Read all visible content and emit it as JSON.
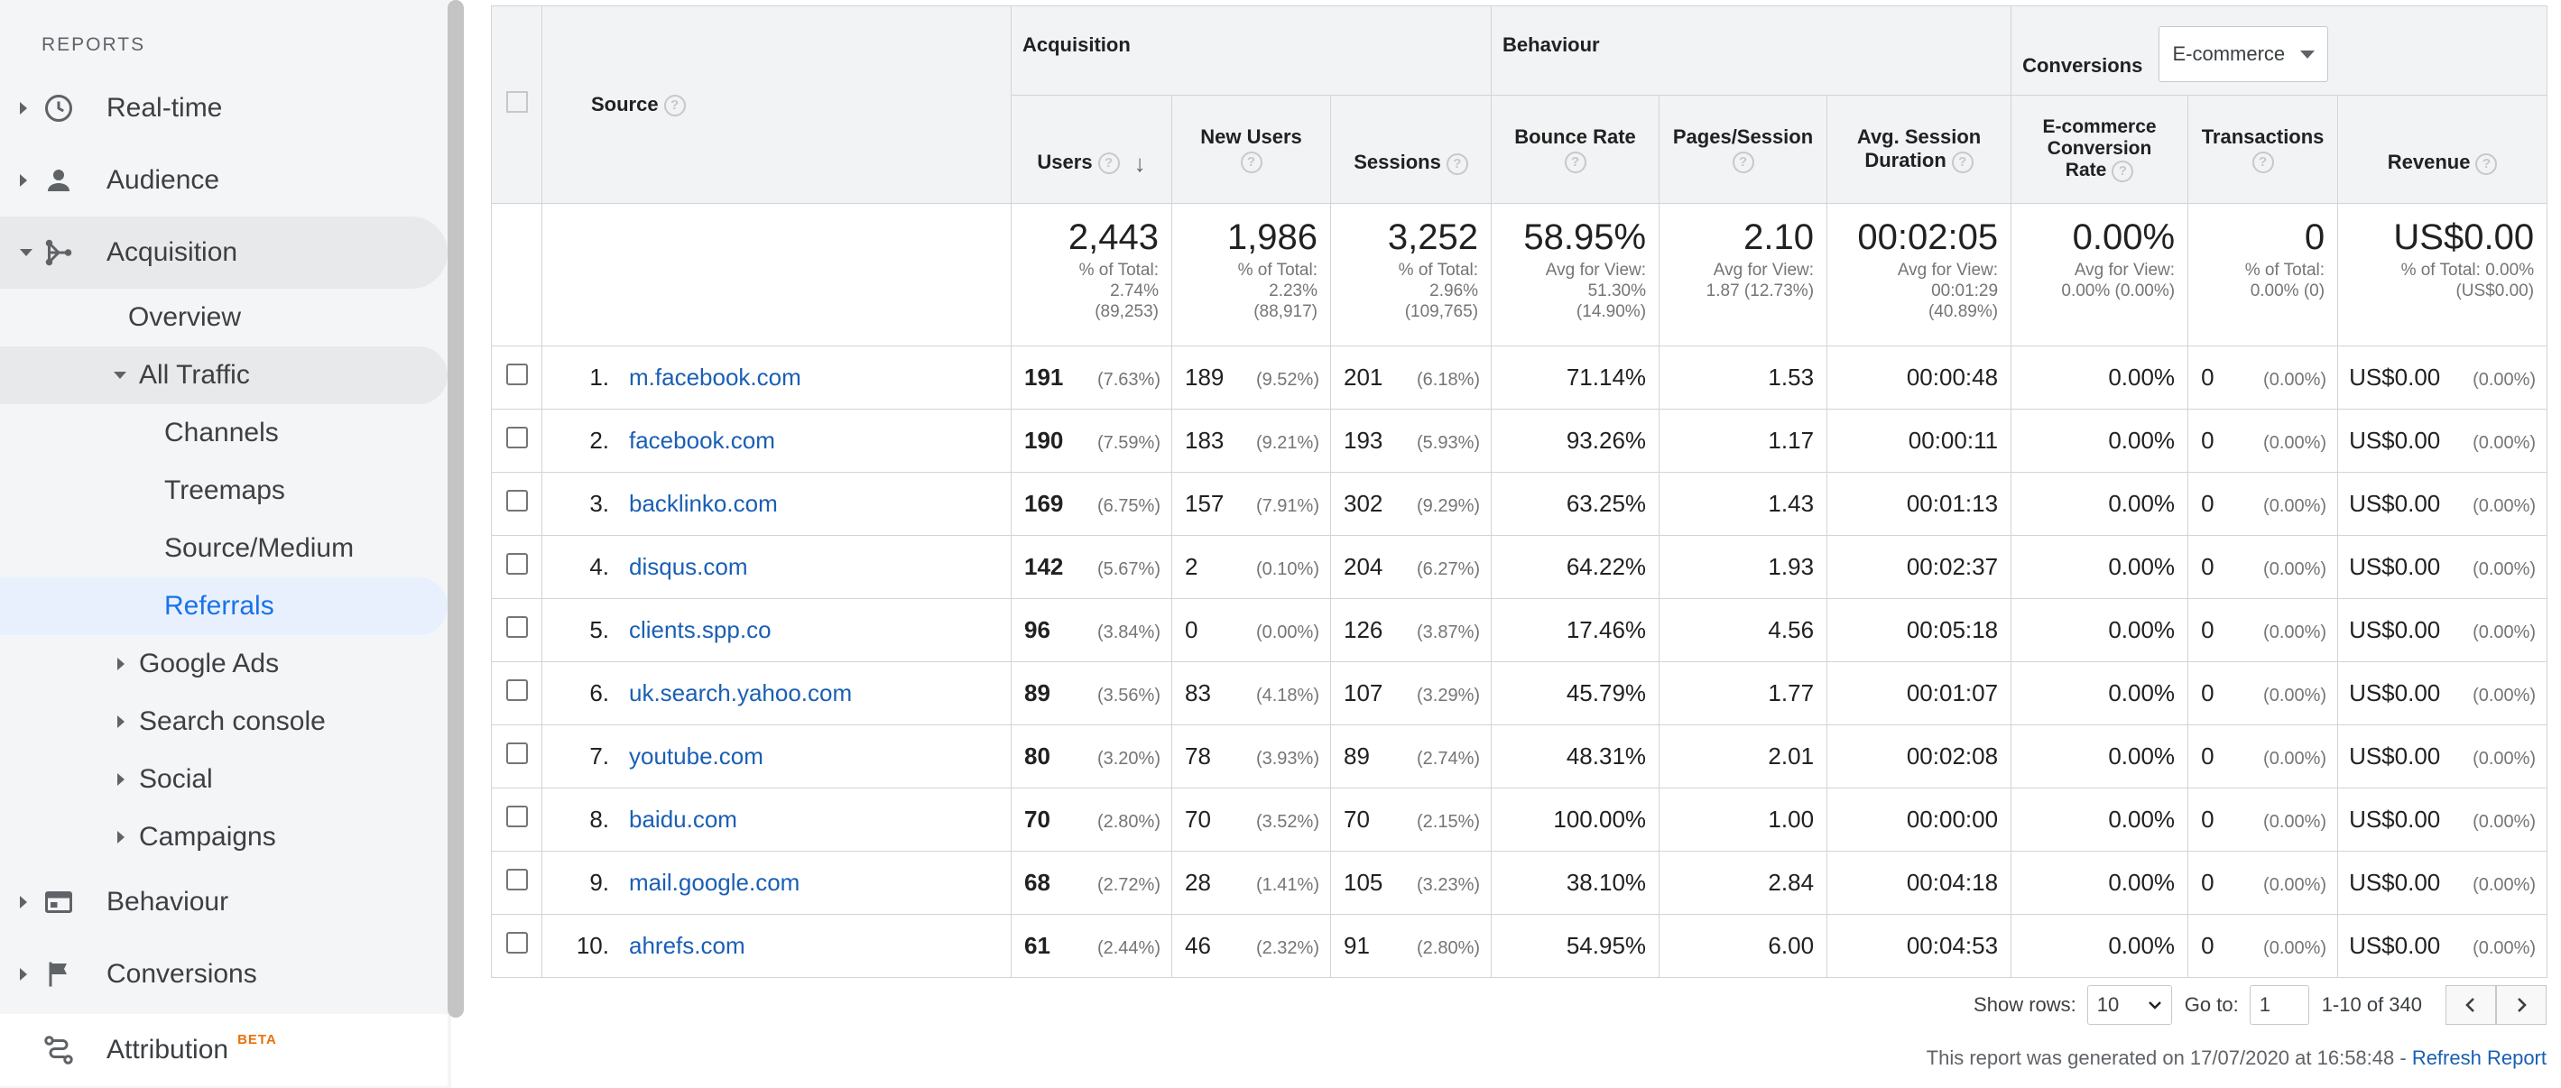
{
  "sidebar": {
    "heading": "REPORTS",
    "items": [
      {
        "label": "Real-time"
      },
      {
        "label": "Audience"
      },
      {
        "label": "Acquisition"
      },
      {
        "label": "Overview"
      },
      {
        "label": "All Traffic"
      },
      {
        "label": "Channels"
      },
      {
        "label": "Treemaps"
      },
      {
        "label": "Source/Medium"
      },
      {
        "label": "Referrals"
      },
      {
        "label": "Google Ads"
      },
      {
        "label": "Search console"
      },
      {
        "label": "Social"
      },
      {
        "label": "Campaigns"
      },
      {
        "label": "Behaviour"
      },
      {
        "label": "Conversions"
      },
      {
        "label": "Attribution",
        "badge": "BETA"
      }
    ]
  },
  "table": {
    "groups": {
      "acquisition": "Acquisition",
      "behaviour": "Behaviour",
      "conversions": "Conversions",
      "conversions_select": "E-commerce"
    },
    "columns": {
      "source": "Source",
      "users": "Users",
      "new_users": "New Users",
      "sessions": "Sessions",
      "bounce_rate": "Bounce Rate",
      "pages_session": "Pages/Session",
      "avg_session_1": "Avg. Session",
      "avg_session_2": "Duration",
      "ecr_1": "E-commerce",
      "ecr_2": "Conversion",
      "ecr_3": "Rate",
      "transactions": "Transactions",
      "revenue": "Revenue"
    },
    "totals": {
      "users": {
        "value": "2,443",
        "l1": "% of Total:",
        "l2": "2.74%",
        "l3": "(89,253)"
      },
      "new_users": {
        "value": "1,986",
        "l1": "% of Total:",
        "l2": "2.23%",
        "l3": "(88,917)"
      },
      "sessions": {
        "value": "3,252",
        "l1": "% of Total:",
        "l2": "2.96%",
        "l3": "(109,765)"
      },
      "bounce_rate": {
        "value": "58.95%",
        "l1": "Avg for View:",
        "l2": "51.30%",
        "l3": "(14.90%)"
      },
      "pages_session": {
        "value": "2.10",
        "l1": "Avg for View:",
        "l2": "1.87 (12.73%)"
      },
      "avg_duration": {
        "value": "00:02:05",
        "l1": "Avg for View:",
        "l2": "00:01:29",
        "l3": "(40.89%)"
      },
      "ecr": {
        "value": "0.00%",
        "l1": "Avg for View:",
        "l2": "0.00% (0.00%)"
      },
      "transactions": {
        "value": "0",
        "l1": "% of Total:",
        "l2": "0.00% (0)"
      },
      "revenue": {
        "value": "US$0.00",
        "l1": "% of Total: 0.00%",
        "l2": "(US$0.00)"
      }
    },
    "rows": [
      {
        "idx": "1.",
        "source": "m.facebook.com",
        "users": "191",
        "users_pct": "(7.63%)",
        "new_users": "189",
        "new_users_pct": "(9.52%)",
        "sessions": "201",
        "sessions_pct": "(6.18%)",
        "bounce": "71.14%",
        "pages": "1.53",
        "duration": "00:00:48",
        "ecr": "0.00%",
        "trans": "0",
        "trans_pct": "(0.00%)",
        "revenue": "US$0.00",
        "revenue_pct": "(0.00%)"
      },
      {
        "idx": "2.",
        "source": "facebook.com",
        "users": "190",
        "users_pct": "(7.59%)",
        "new_users": "183",
        "new_users_pct": "(9.21%)",
        "sessions": "193",
        "sessions_pct": "(5.93%)",
        "bounce": "93.26%",
        "pages": "1.17",
        "duration": "00:00:11",
        "ecr": "0.00%",
        "trans": "0",
        "trans_pct": "(0.00%)",
        "revenue": "US$0.00",
        "revenue_pct": "(0.00%)"
      },
      {
        "idx": "3.",
        "source": "backlinko.com",
        "users": "169",
        "users_pct": "(6.75%)",
        "new_users": "157",
        "new_users_pct": "(7.91%)",
        "sessions": "302",
        "sessions_pct": "(9.29%)",
        "bounce": "63.25%",
        "pages": "1.43",
        "duration": "00:01:13",
        "ecr": "0.00%",
        "trans": "0",
        "trans_pct": "(0.00%)",
        "revenue": "US$0.00",
        "revenue_pct": "(0.00%)"
      },
      {
        "idx": "4.",
        "source": "disqus.com",
        "users": "142",
        "users_pct": "(5.67%)",
        "new_users": "2",
        "new_users_pct": "(0.10%)",
        "sessions": "204",
        "sessions_pct": "(6.27%)",
        "bounce": "64.22%",
        "pages": "1.93",
        "duration": "00:02:37",
        "ecr": "0.00%",
        "trans": "0",
        "trans_pct": "(0.00%)",
        "revenue": "US$0.00",
        "revenue_pct": "(0.00%)"
      },
      {
        "idx": "5.",
        "source": "clients.spp.co",
        "users": "96",
        "users_pct": "(3.84%)",
        "new_users": "0",
        "new_users_pct": "(0.00%)",
        "sessions": "126",
        "sessions_pct": "(3.87%)",
        "bounce": "17.46%",
        "pages": "4.56",
        "duration": "00:05:18",
        "ecr": "0.00%",
        "trans": "0",
        "trans_pct": "(0.00%)",
        "revenue": "US$0.00",
        "revenue_pct": "(0.00%)"
      },
      {
        "idx": "6.",
        "source": "uk.search.yahoo.com",
        "users": "89",
        "users_pct": "(3.56%)",
        "new_users": "83",
        "new_users_pct": "(4.18%)",
        "sessions": "107",
        "sessions_pct": "(3.29%)",
        "bounce": "45.79%",
        "pages": "1.77",
        "duration": "00:01:07",
        "ecr": "0.00%",
        "trans": "0",
        "trans_pct": "(0.00%)",
        "revenue": "US$0.00",
        "revenue_pct": "(0.00%)"
      },
      {
        "idx": "7.",
        "source": "youtube.com",
        "users": "80",
        "users_pct": "(3.20%)",
        "new_users": "78",
        "new_users_pct": "(3.93%)",
        "sessions": "89",
        "sessions_pct": "(2.74%)",
        "bounce": "48.31%",
        "pages": "2.01",
        "duration": "00:02:08",
        "ecr": "0.00%",
        "trans": "0",
        "trans_pct": "(0.00%)",
        "revenue": "US$0.00",
        "revenue_pct": "(0.00%)"
      },
      {
        "idx": "8.",
        "source": "baidu.com",
        "users": "70",
        "users_pct": "(2.80%)",
        "new_users": "70",
        "new_users_pct": "(3.52%)",
        "sessions": "70",
        "sessions_pct": "(2.15%)",
        "bounce": "100.00%",
        "pages": "1.00",
        "duration": "00:00:00",
        "ecr": "0.00%",
        "trans": "0",
        "trans_pct": "(0.00%)",
        "revenue": "US$0.00",
        "revenue_pct": "(0.00%)"
      },
      {
        "idx": "9.",
        "source": "mail.google.com",
        "users": "68",
        "users_pct": "(2.72%)",
        "new_users": "28",
        "new_users_pct": "(1.41%)",
        "sessions": "105",
        "sessions_pct": "(3.23%)",
        "bounce": "38.10%",
        "pages": "2.84",
        "duration": "00:04:18",
        "ecr": "0.00%",
        "trans": "0",
        "trans_pct": "(0.00%)",
        "revenue": "US$0.00",
        "revenue_pct": "(0.00%)"
      },
      {
        "idx": "10.",
        "source": "ahrefs.com",
        "users": "61",
        "users_pct": "(2.44%)",
        "new_users": "46",
        "new_users_pct": "(2.32%)",
        "sessions": "91",
        "sessions_pct": "(2.80%)",
        "bounce": "54.95%",
        "pages": "6.00",
        "duration": "00:04:53",
        "ecr": "0.00%",
        "trans": "0",
        "trans_pct": "(0.00%)",
        "revenue": "US$0.00",
        "revenue_pct": "(0.00%)"
      }
    ]
  },
  "pager": {
    "show_rows_label": "Show rows:",
    "show_rows_value": "10",
    "goto_label": "Go to:",
    "goto_value": "1",
    "range": "1-10 of 340"
  },
  "footer": {
    "generated": "This report was generated on 17/07/2020 at 16:58:48 -",
    "refresh": "Refresh Report"
  },
  "icons": {
    "realtime": "clock-icon",
    "audience": "person-icon",
    "acquisition": "acquisition-icon",
    "behaviour": "behaviour-icon",
    "conversions": "flag-icon",
    "attribution": "attribution-icon"
  }
}
